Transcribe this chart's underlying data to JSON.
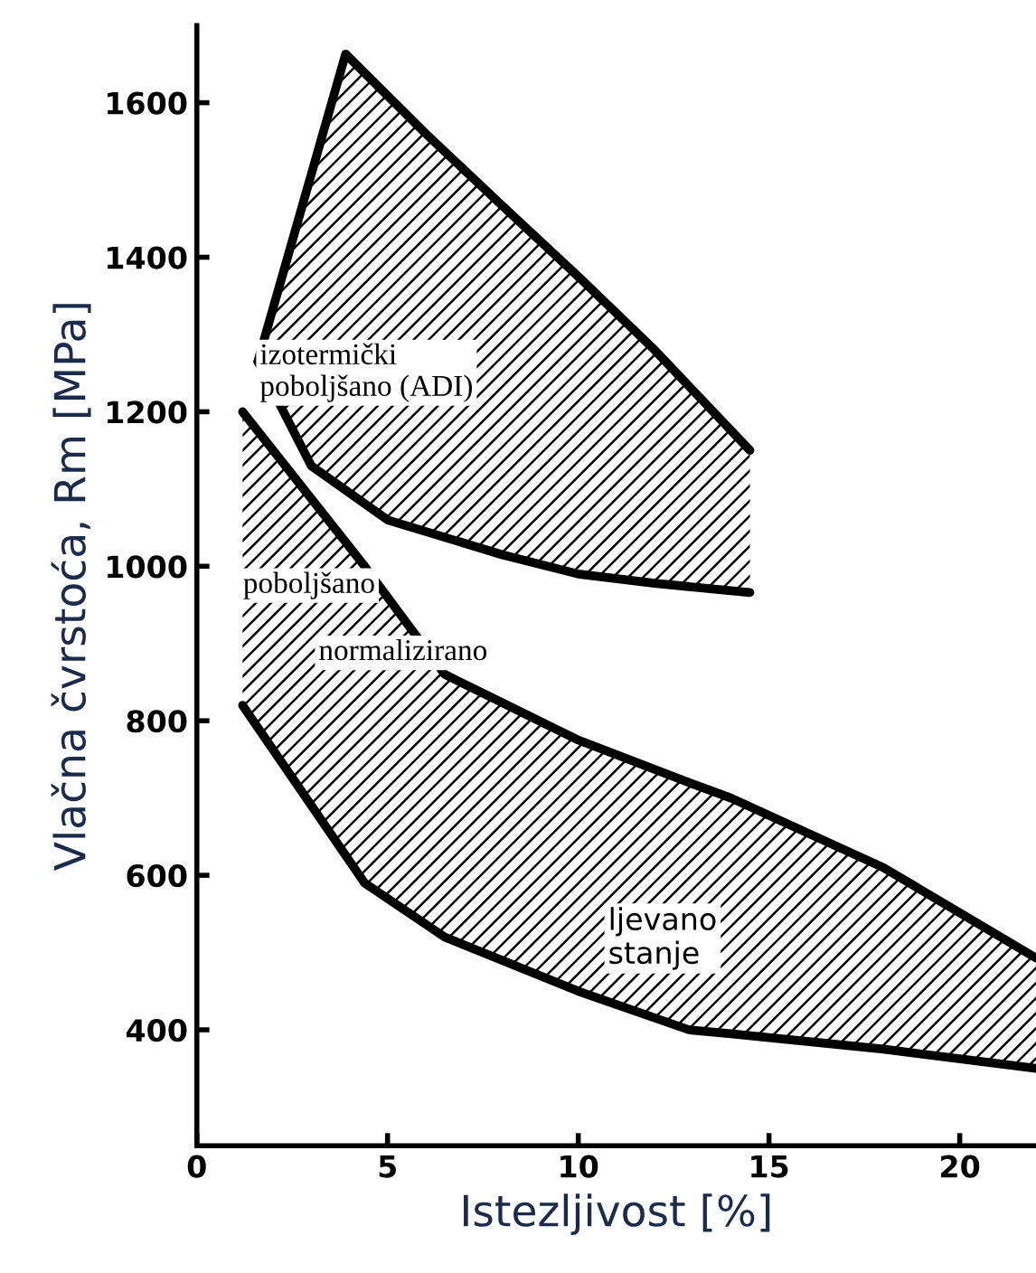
{
  "chart_data": {
    "type": "line",
    "xlabel": "Istezljivost [%]",
    "ylabel": "Vlačna čvrstoća, Rm [MPa]",
    "xlim": [
      0,
      22
    ],
    "ylim": [
      250,
      1700
    ],
    "xticks": [
      0,
      5,
      10,
      15,
      20
    ],
    "yticks": [
      400,
      600,
      800,
      1000,
      1200,
      1400,
      1600
    ],
    "grid": false,
    "legend": false,
    "marker": "none",
    "line_style": "solid",
    "series": [
      {
        "color": "#000000",
        "x": [
          1.6,
          3.9,
          6,
          8,
          10,
          12,
          14.5
        ],
        "values": [
          1265,
          1663,
          1560,
          1467,
          1375,
          1280,
          1150
        ]
      },
      {
        "color": "#000000",
        "x": [
          1.6,
          3,
          5,
          8,
          10,
          12,
          14.5
        ],
        "values": [
          1265,
          1130,
          1060,
          1015,
          990,
          978,
          966
        ]
      },
      {
        "color": "#000000",
        "x": [
          1.2,
          4.4,
          6.5,
          10,
          12.9,
          14,
          18,
          22
        ],
        "values": [
          1200,
          1000,
          860,
          775,
          720,
          700,
          610,
          493
        ]
      },
      {
        "color": "#000000",
        "x": [
          1.2,
          4.4,
          6.5,
          10,
          12.9,
          14,
          18,
          22
        ],
        "values": [
          820,
          590,
          520,
          450,
          400,
          395,
          375,
          350
        ]
      }
    ],
    "annotations": [
      "izotermički\npoboljšano (ADI)",
      "poboljšano",
      "normalizirano",
      "ljevano\nstanje"
    ]
  }
}
